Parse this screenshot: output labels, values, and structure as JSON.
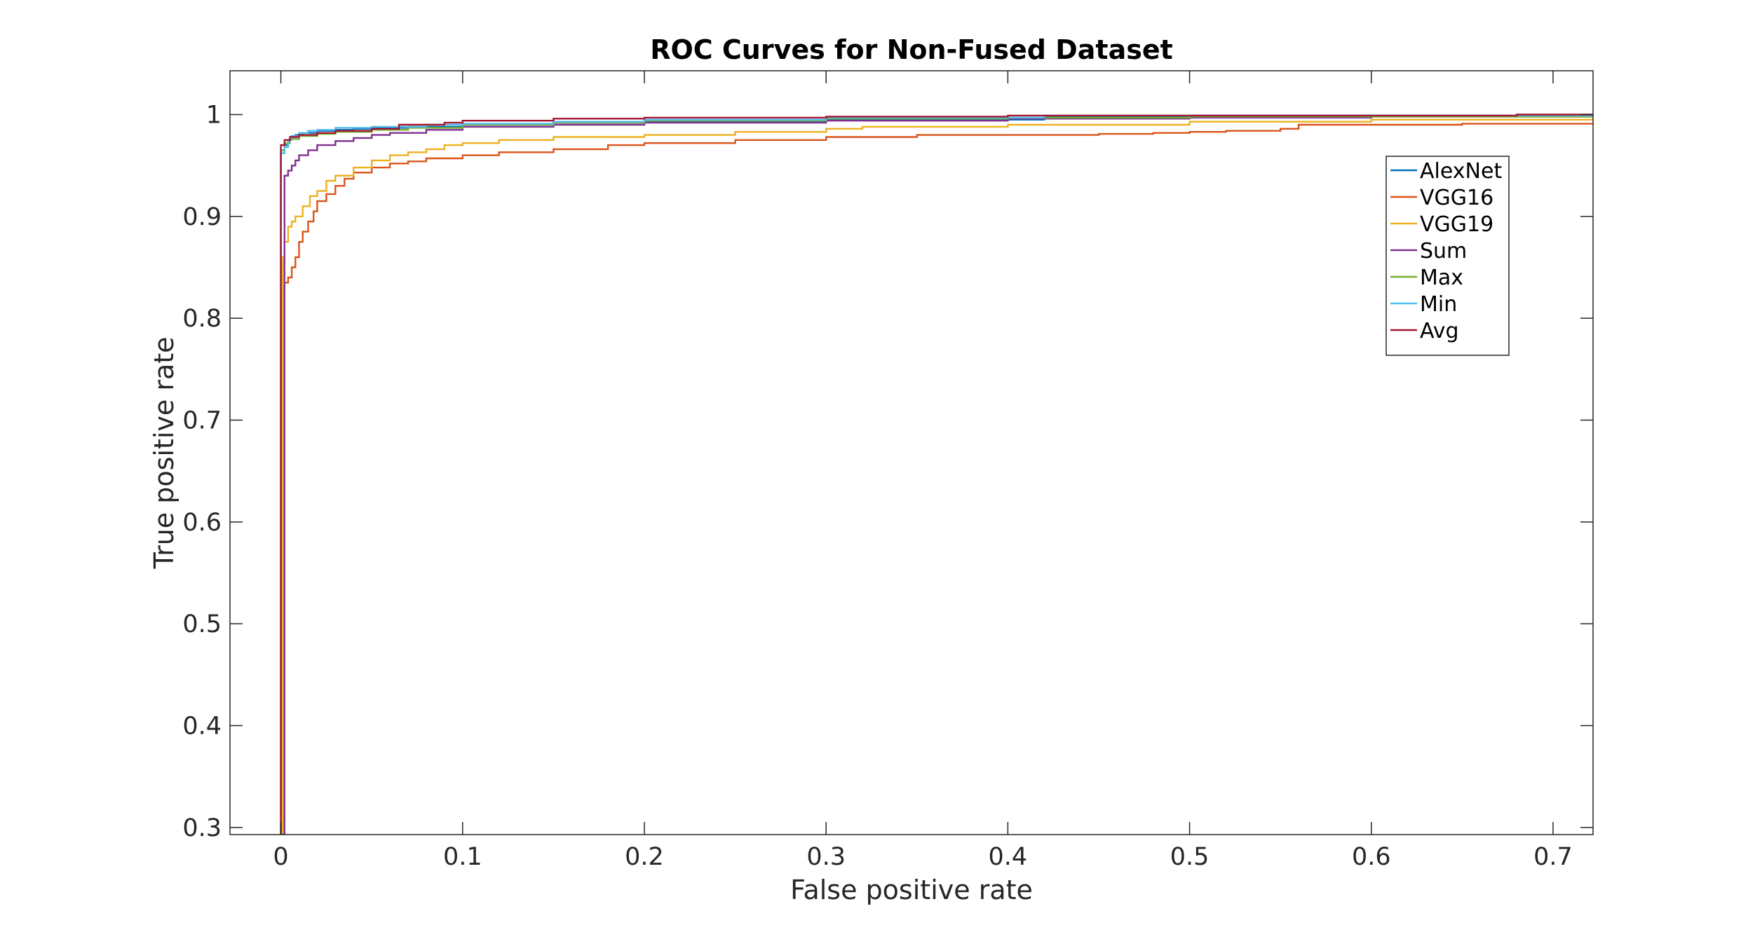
{
  "chart_data": {
    "type": "line",
    "title": "ROC Curves for Non-Fused Dataset",
    "xlabel": "False positive rate",
    "ylabel": "True positive rate",
    "xlim": [
      -0.028,
      0.722
    ],
    "ylim": [
      0.293,
      1.043
    ],
    "xticks": [
      0,
      0.1,
      0.2,
      0.3,
      0.4,
      0.5,
      0.6,
      0.7
    ],
    "xtick_labels": [
      "0",
      "0.1",
      "0.2",
      "0.3",
      "0.4",
      "0.5",
      "0.6",
      "0.7"
    ],
    "yticks": [
      0.3,
      0.4,
      0.5,
      0.6,
      0.7,
      0.8,
      0.9,
      1
    ],
    "ytick_labels": [
      "0.3",
      "0.4",
      "0.5",
      "0.6",
      "0.7",
      "0.8",
      "0.9",
      "1"
    ],
    "grid": false,
    "legend_position": "top-right",
    "series": [
      {
        "name": "AlexNet",
        "color": "#0072BD",
        "x": [
          0,
          0,
          0.002,
          0.004,
          0.006,
          0.008,
          0.012,
          0.02,
          0.03,
          0.04,
          0.05,
          0.07,
          0.1,
          0.15,
          0.2,
          0.3,
          0.42,
          0.5,
          0.6,
          0.722
        ],
        "y": [
          0.293,
          0.965,
          0.97,
          0.975,
          0.978,
          0.98,
          0.982,
          0.984,
          0.985,
          0.986,
          0.987,
          0.988,
          0.99,
          0.992,
          0.993,
          0.995,
          0.998,
          0.999,
          0.999,
          1.0
        ]
      },
      {
        "name": "VGG16",
        "color": "#D95319",
        "x": [
          0,
          0.001,
          0.001,
          0.002,
          0.004,
          0.006,
          0.008,
          0.01,
          0.012,
          0.015,
          0.018,
          0.02,
          0.025,
          0.03,
          0.035,
          0.04,
          0.05,
          0.06,
          0.07,
          0.08,
          0.1,
          0.12,
          0.15,
          0.18,
          0.2,
          0.25,
          0.3,
          0.35,
          0.39,
          0.4,
          0.45,
          0.48,
          0.5,
          0.52,
          0.55,
          0.56,
          0.65,
          0.722
        ],
        "y": [
          0.293,
          0.76,
          0.83,
          0.835,
          0.84,
          0.85,
          0.86,
          0.875,
          0.885,
          0.895,
          0.905,
          0.915,
          0.922,
          0.93,
          0.937,
          0.943,
          0.948,
          0.952,
          0.954,
          0.957,
          0.96,
          0.963,
          0.966,
          0.97,
          0.972,
          0.975,
          0.978,
          0.98,
          0.98,
          0.98,
          0.981,
          0.982,
          0.983,
          0.984,
          0.986,
          0.99,
          0.991,
          0.992
        ]
      },
      {
        "name": "VGG19",
        "color": "#EDB120",
        "x": [
          0,
          0.001,
          0.002,
          0.004,
          0.006,
          0.008,
          0.012,
          0.016,
          0.02,
          0.025,
          0.03,
          0.04,
          0.05,
          0.06,
          0.07,
          0.08,
          0.09,
          0.1,
          0.12,
          0.15,
          0.2,
          0.25,
          0.3,
          0.32,
          0.4,
          0.5,
          0.6,
          0.722
        ],
        "y": [
          0.293,
          0.86,
          0.875,
          0.89,
          0.895,
          0.9,
          0.91,
          0.92,
          0.925,
          0.935,
          0.94,
          0.948,
          0.955,
          0.96,
          0.963,
          0.966,
          0.97,
          0.972,
          0.975,
          0.978,
          0.98,
          0.983,
          0.986,
          0.988,
          0.99,
          0.993,
          0.995,
          0.996
        ]
      },
      {
        "name": "Sum",
        "color": "#7E2F8E",
        "x": [
          0,
          0.002,
          0.004,
          0.006,
          0.008,
          0.01,
          0.015,
          0.02,
          0.03,
          0.04,
          0.05,
          0.06,
          0.08,
          0.1,
          0.15,
          0.2,
          0.3,
          0.4,
          0.5,
          0.6,
          0.722
        ],
        "y": [
          0.293,
          0.94,
          0.945,
          0.95,
          0.955,
          0.96,
          0.965,
          0.97,
          0.974,
          0.977,
          0.98,
          0.982,
          0.985,
          0.988,
          0.99,
          0.992,
          0.994,
          0.996,
          0.997,
          0.998,
          0.999
        ]
      },
      {
        "name": "Max",
        "color": "#77AC30",
        "x": [
          0,
          0,
          0.002,
          0.005,
          0.01,
          0.02,
          0.03,
          0.05,
          0.07,
          0.1,
          0.15,
          0.2,
          0.3,
          0.4,
          0.5,
          0.6,
          0.722
        ],
        "y": [
          0.293,
          0.965,
          0.972,
          0.976,
          0.979,
          0.981,
          0.983,
          0.985,
          0.987,
          0.99,
          0.992,
          0.994,
          0.996,
          0.997,
          0.998,
          0.998,
          0.999
        ]
      },
      {
        "name": "Min",
        "color": "#4DBEEE",
        "x": [
          0,
          0,
          0.002,
          0.004,
          0.006,
          0.01,
          0.015,
          0.02,
          0.03,
          0.05,
          0.08,
          0.1,
          0.15,
          0.2,
          0.3,
          0.42,
          0.5,
          0.6,
          0.722
        ],
        "y": [
          0.293,
          0.962,
          0.968,
          0.975,
          0.979,
          0.982,
          0.984,
          0.985,
          0.987,
          0.988,
          0.99,
          0.991,
          0.993,
          0.995,
          0.997,
          0.999,
          0.999,
          0.999,
          1.0
        ]
      },
      {
        "name": "Avg",
        "color": "#A2142F",
        "x": [
          0,
          0,
          0.002,
          0.005,
          0.01,
          0.02,
          0.03,
          0.05,
          0.065,
          0.09,
          0.1,
          0.15,
          0.2,
          0.3,
          0.4,
          0.5,
          0.6,
          0.68,
          0.722
        ],
        "y": [
          0.293,
          0.97,
          0.975,
          0.978,
          0.98,
          0.982,
          0.984,
          0.986,
          0.99,
          0.992,
          0.994,
          0.996,
          0.997,
          0.998,
          0.999,
          0.999,
          0.999,
          1.0,
          1.0
        ]
      }
    ]
  }
}
